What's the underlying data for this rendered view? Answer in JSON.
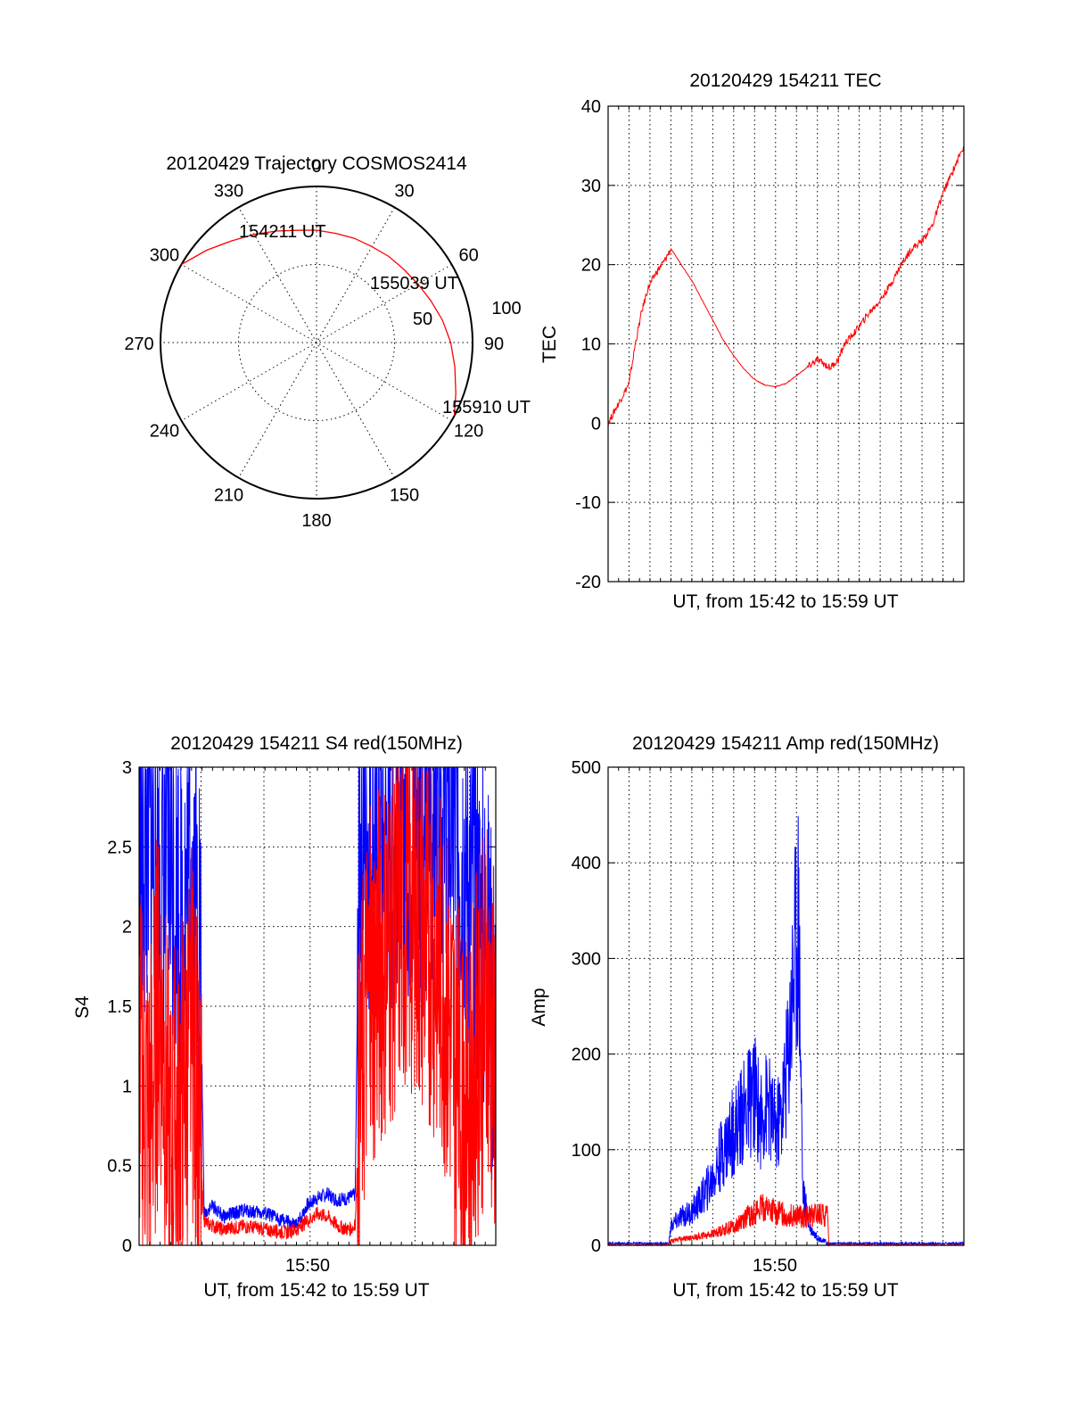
{
  "colors": {
    "red": "#ff0000",
    "blue": "#0000ff"
  },
  "chart_data": [
    {
      "type": "polar",
      "title": "20120429 Trajectory COSMOS2414",
      "azimuth_labels": [
        "0",
        "30",
        "60",
        "90",
        "120",
        "150",
        "180",
        "210",
        "240",
        "270",
        "300",
        "330"
      ],
      "radial_ring_labels": [
        "50",
        "100"
      ],
      "radial_range": [
        0,
        100
      ],
      "grid": true,
      "series": [
        {
          "color": "red",
          "azimuth": [
            300,
            310,
            320,
            330,
            340,
            350,
            0,
            10,
            20,
            30,
            40,
            50,
            60,
            70,
            80,
            90,
            100,
            110,
            118
          ],
          "zenith": [
            100,
            92,
            85,
            80,
            76,
            73,
            72,
            71,
            71,
            71,
            72,
            73,
            75,
            78,
            82,
            86,
            90,
            95,
            100
          ]
        }
      ],
      "annotations": [
        {
          "text": "154211 UT",
          "azimuth": 310,
          "zenith": 100
        },
        {
          "text": "155039 UT",
          "azimuth": 55,
          "zenith": 73
        },
        {
          "text": "155910 UT",
          "azimuth": 118,
          "zenith": 100
        }
      ]
    },
    {
      "type": "line",
      "title": "20120429 154211 TEC",
      "xlabel": "UT, from 15:42 to 15:59 UT",
      "ylabel": "TEC",
      "xlim": [
        0,
        17
      ],
      "ylim": [
        -20,
        40
      ],
      "yticks": [
        -20,
        -10,
        0,
        10,
        20,
        30,
        40
      ],
      "xgrid": [
        1,
        2,
        3,
        4,
        5,
        6,
        7,
        8,
        9,
        10,
        11,
        12,
        13,
        14,
        15,
        16,
        17
      ],
      "grid": true,
      "series": [
        {
          "color": "red",
          "x": [
            0,
            0.6,
            1.0,
            1.3,
            1.6,
            1.9,
            2.3,
            2.7,
            3.0,
            3.5,
            4.0,
            4.5,
            5.0,
            5.5,
            6.0,
            6.5,
            7.0,
            7.5,
            8.0,
            8.5,
            9.0,
            9.5,
            10.0,
            10.3,
            10.6,
            11.0,
            11.3,
            11.8,
            12.5,
            13.0,
            13.5,
            14.0,
            14.5,
            15.0,
            15.5,
            16.0,
            16.5,
            17.0
          ],
          "y": [
            0,
            3,
            5,
            10,
            14,
            17,
            19,
            20.5,
            22,
            20,
            18,
            15.5,
            13,
            10.5,
            8.5,
            6.8,
            5.5,
            4.8,
            4.6,
            5.0,
            6.0,
            7.0,
            8.0,
            7.5,
            7.0,
            8.0,
            10.0,
            11.5,
            14.0,
            15.5,
            17.5,
            20.0,
            22.0,
            23.0,
            25.0,
            29.0,
            32.0,
            35.0
          ]
        }
      ]
    },
    {
      "type": "line",
      "title": "20120429 154211 S4 red(150MHz)",
      "xlabel": "UT, from 15:42 to 15:59 UT",
      "ylabel": "S4",
      "xtick_labels": [
        "15:50"
      ],
      "xlim": [
        0,
        17
      ],
      "ylim": [
        0,
        3
      ],
      "yticks": [
        0,
        0.5,
        1,
        1.5,
        2,
        2.5,
        3
      ],
      "ytick_labels": [
        "0",
        "0.5",
        "1",
        "1.5",
        "2",
        "2.5",
        "3"
      ],
      "xgrid": [
        2.95,
        5.95,
        8.15,
        10.45,
        13.15,
        15.75
      ],
      "grid": true,
      "series": [
        {
          "color": "blue",
          "x": [
            0,
            0.5,
            1.0,
            1.5,
            2.0,
            2.5,
            2.9,
            3.1,
            3.5,
            4.0,
            5.0,
            6.0,
            7.0,
            7.5,
            8.0,
            8.5,
            9.0,
            9.5,
            10.0,
            10.3,
            10.5,
            10.8,
            11.5,
            12.5,
            13.5,
            14.5,
            15.5,
            16.5,
            17.0
          ],
          "y": [
            2.3,
            2.6,
            2.2,
            2.5,
            2.0,
            2.4,
            2.0,
            0.2,
            0.25,
            0.18,
            0.22,
            0.2,
            0.15,
            0.12,
            0.25,
            0.3,
            0.32,
            0.28,
            0.3,
            0.32,
            2.6,
            2.7,
            2.5,
            2.7,
            2.6,
            2.8,
            2.5,
            1.8,
            1.3
          ]
        },
        {
          "color": "red",
          "x": [
            0,
            0.5,
            1.0,
            1.5,
            2.0,
            2.5,
            2.9,
            3.1,
            3.5,
            4.0,
            5.0,
            6.0,
            7.0,
            7.5,
            8.0,
            8.5,
            9.0,
            9.5,
            10.0,
            10.3,
            10.5,
            10.8,
            11.5,
            12.5,
            13.5,
            14.5,
            15.5,
            16.5,
            17.0
          ],
          "y": [
            1.2,
            0.8,
            1.6,
            0.5,
            1.0,
            1.3,
            0.6,
            0.15,
            0.12,
            0.1,
            0.12,
            0.1,
            0.08,
            0.1,
            0.15,
            0.2,
            0.18,
            0.12,
            0.1,
            0.12,
            0.9,
            1.5,
            1.8,
            2.1,
            2.0,
            1.7,
            0.7,
            1.5,
            1.2
          ]
        }
      ]
    },
    {
      "type": "line",
      "title": "20120429 154211 Amp red(150MHz)",
      "xlabel": "UT, from 15:42 to 15:59 UT",
      "ylabel": "Amp",
      "xtick_labels": [
        "15:50"
      ],
      "xlim": [
        0,
        17
      ],
      "ylim": [
        0,
        500
      ],
      "yticks": [
        0,
        100,
        200,
        300,
        400,
        500
      ],
      "xgrid": [
        1,
        2,
        3,
        4,
        5,
        6,
        7,
        8,
        9,
        10,
        11,
        12,
        13,
        14,
        15,
        16,
        17
      ],
      "grid": true,
      "series": [
        {
          "color": "blue",
          "x": [
            0,
            2.9,
            3.0,
            3.5,
            4.0,
            4.5,
            5.0,
            5.5,
            6.0,
            6.5,
            7.0,
            7.3,
            7.6,
            8.0,
            8.3,
            8.6,
            8.9,
            9.1,
            9.3,
            9.6,
            10.0,
            10.5,
            17.0
          ],
          "y": [
            2,
            2,
            20,
            30,
            35,
            50,
            70,
            100,
            120,
            140,
            160,
            130,
            150,
            120,
            140,
            200,
            300,
            350,
            60,
            20,
            8,
            2,
            2
          ]
        },
        {
          "color": "red",
          "x": [
            0,
            2.9,
            3.0,
            4.0,
            5.0,
            6.0,
            6.5,
            7.0,
            7.5,
            8.0,
            8.5,
            9.0,
            9.5,
            10.0,
            10.5,
            10.55,
            17.0
          ],
          "y": [
            0,
            0,
            5,
            8,
            12,
            20,
            28,
            35,
            40,
            35,
            32,
            30,
            30,
            32,
            30,
            0,
            0
          ]
        }
      ]
    }
  ]
}
